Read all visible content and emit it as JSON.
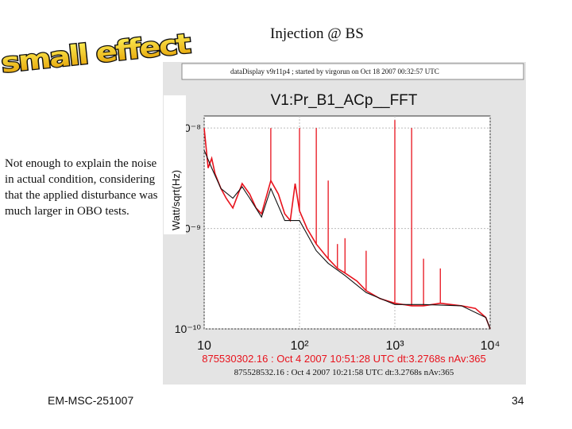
{
  "slide": {
    "title": "Injection @ BS",
    "wordart": "small effect",
    "note": "Not enough to explain the noise in actual condition, considering that the applied disturbance was much larger in OBO tests.",
    "footer_left": "EM-MSC-251007",
    "page_number": "34"
  },
  "chart_data": {
    "type": "line",
    "header": "dataDisplay v9r11p4 ; started by virgorun on Oct 18 2007 00:32:57 UTC",
    "title": "V1:Pr_B1_ACp__FFT",
    "ylabel": "Watt/sqrt(Hz)",
    "xlabel": "",
    "x_scale": "log",
    "y_scale": "log",
    "xlim": [
      10,
      10000
    ],
    "ylim": [
      1e-10,
      1e-08
    ],
    "x_ticks": [
      {
        "value": 10,
        "label": "10"
      },
      {
        "value": 100,
        "label": "10²"
      },
      {
        "value": 1000,
        "label": "10³"
      },
      {
        "value": 10000,
        "label": "10⁴"
      }
    ],
    "y_ticks": [
      {
        "value": 1e-08,
        "label": "10⁻⁸"
      },
      {
        "value": 1e-09,
        "label": "10⁻⁹"
      },
      {
        "value": 1e-10,
        "label": "10⁻¹⁰"
      }
    ],
    "grid": true,
    "colors": {
      "red": "#e8121c",
      "black": "#111111"
    },
    "series": [
      {
        "name": "875530302.16 : Oct 4 2007 10:51:28 UTC dt:3.2768s nAv:365",
        "color": "#e8121c",
        "x": [
          10,
          11,
          12,
          13,
          15,
          17,
          20,
          25,
          30,
          35,
          40,
          50,
          60,
          70,
          80,
          90,
          100,
          120,
          150,
          200,
          250,
          300,
          400,
          500,
          700,
          1000,
          1500,
          2000,
          3000,
          5000,
          7000,
          9000,
          10000
        ],
        "y": [
          1e-08,
          4e-09,
          5e-09,
          3.5e-09,
          2.5e-09,
          2e-09,
          1.6e-09,
          2.8e-09,
          2.2e-09,
          1.6e-09,
          1.4e-09,
          3e-09,
          2.2e-09,
          1.4e-09,
          1.2e-09,
          2.8e-09,
          1.5e-09,
          1e-09,
          7e-10,
          5e-10,
          4e-10,
          3.6e-10,
          3e-10,
          2.4e-10,
          2e-10,
          1.8e-10,
          1.7e-10,
          1.7e-10,
          1.8e-10,
          1.7e-10,
          1.6e-10,
          1.3e-10,
          1e-10
        ],
        "peaks": [
          {
            "x": 50,
            "y": 1e-08
          },
          {
            "x": 100,
            "y": 1e-08
          },
          {
            "x": 150,
            "y": 1e-08
          },
          {
            "x": 200,
            "y": 3e-09
          },
          {
            "x": 250,
            "y": 7e-10
          },
          {
            "x": 300,
            "y": 8e-10
          },
          {
            "x": 500,
            "y": 6e-10
          },
          {
            "x": 1000,
            "y": 1.2e-08
          },
          {
            "x": 1500,
            "y": 1e-08
          },
          {
            "x": 2000,
            "y": 5e-10
          },
          {
            "x": 3000,
            "y": 4e-10
          }
        ]
      },
      {
        "name": "875528532.16 : Oct 4 2007 10:21:58 UTC dt:3.2768s nAv:365",
        "color": "#111111",
        "x": [
          10,
          12,
          15,
          20,
          25,
          30,
          40,
          50,
          70,
          100,
          150,
          200,
          300,
          500,
          1000,
          2000,
          5000,
          9000,
          10000
        ],
        "y": [
          6e-09,
          4e-09,
          2.5e-09,
          2e-09,
          2.6e-09,
          2e-09,
          1.3e-09,
          2.5e-09,
          1.2e-09,
          1.2e-09,
          6e-10,
          4.5e-10,
          3.4e-10,
          2.3e-10,
          1.75e-10,
          1.75e-10,
          1.7e-10,
          1.3e-10,
          1e-10
        ]
      }
    ]
  }
}
